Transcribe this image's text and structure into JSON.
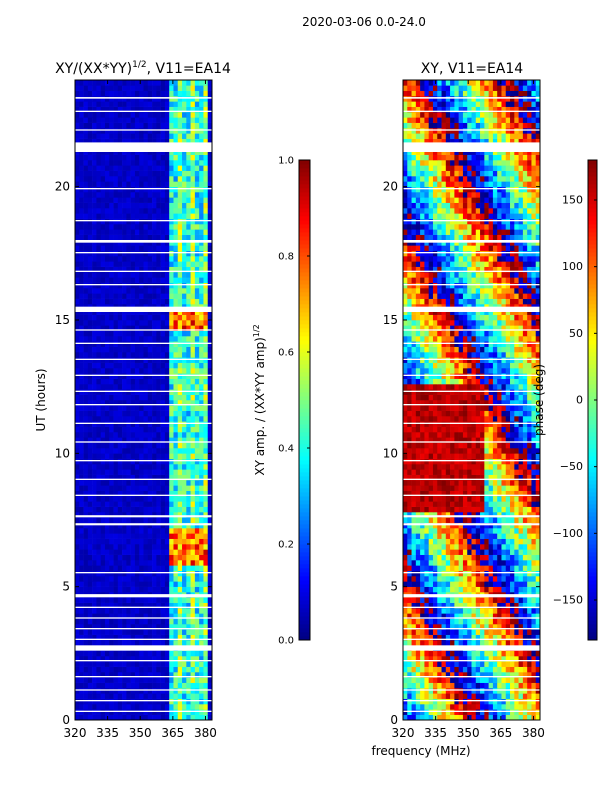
{
  "suptitle": "2020-03-06 0.0-24.0",
  "xlabel_shared": "frequency (MHz)",
  "colors": {
    "background_masked": "#ffffff",
    "colormap": "jet"
  },
  "chart_data": [
    {
      "type": "heatmap",
      "title": "XY/(XX*YY)",
      "title_sup": "1/2",
      "title_suffix": ", V11=EA14",
      "xlabel": "",
      "ylabel": "UT (hours)",
      "xlim": [
        320,
        383
      ],
      "ylim": [
        0,
        24
      ],
      "x_ticks": [
        320,
        335,
        350,
        365,
        380
      ],
      "y_ticks": [
        0,
        5,
        10,
        15,
        20
      ],
      "colorbar": {
        "label": "XY amp. / (XX*YY amp)",
        "label_sup": "1/2",
        "range": [
          0.0,
          1.0
        ],
        "ticks": [
          "0.0",
          "0.2",
          "0.4",
          "0.6",
          "0.8",
          "1.0"
        ],
        "tick_values": [
          0.0,
          0.2,
          0.4,
          0.6,
          0.8,
          1.0
        ]
      },
      "description": "low normalized amplitude (~0.05) below 363 MHz; elevated amplitude (~0.3-0.6) in 363-381 MHz band with hot spots near 6.5 h and 15 h"
    },
    {
      "type": "heatmap",
      "title": "XY, V11=EA14",
      "xlabel": "",
      "ylabel": "",
      "xlim": [
        320,
        383
      ],
      "ylim": [
        0,
        24
      ],
      "x_ticks": [
        320,
        335,
        350,
        365,
        380
      ],
      "y_ticks": [
        0,
        5,
        10,
        15,
        20
      ],
      "colorbar": {
        "label": "phase (deg)",
        "range": [
          -180,
          180
        ],
        "ticks": [
          "−150",
          "−100",
          "−50",
          "0",
          "50",
          "100",
          "150"
        ],
        "tick_values": [
          -150,
          -100,
          -50,
          0,
          50,
          100,
          150
        ]
      },
      "description": "XY phase in degrees, wrapping across full -180 to 180 range; broad red (~+150) region 8-12.5 h below 357 MHz"
    }
  ]
}
